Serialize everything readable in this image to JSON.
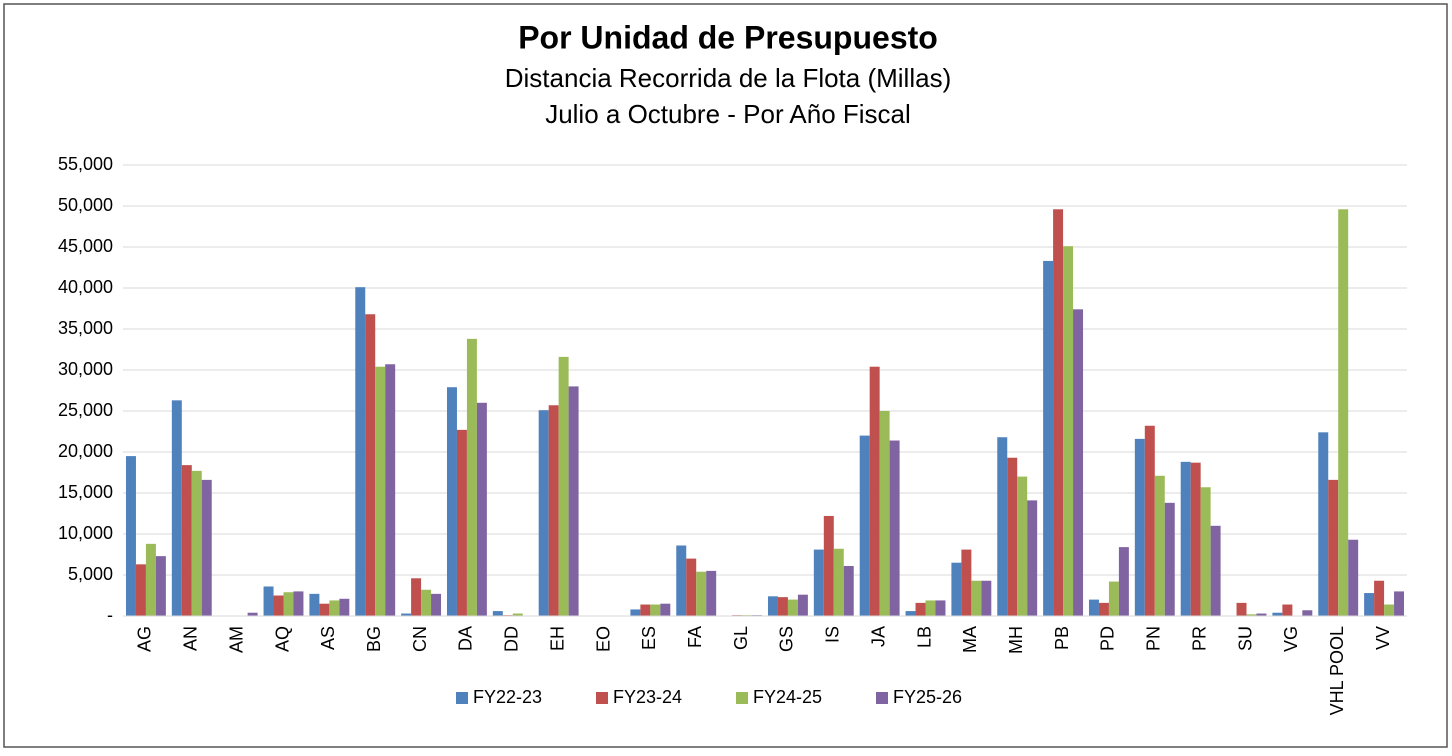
{
  "chart_data": {
    "type": "bar",
    "title": "Por Unidad de Presupuesto",
    "subtitle": [
      "Distancia Recorrida de la Flota (Millas)",
      "Julio a Octubre - Por Año Fiscal"
    ],
    "categories": [
      "AG",
      "AN",
      "AM",
      "AQ",
      "AS",
      "BG",
      "CN",
      "DA",
      "DD",
      "EH",
      "EO",
      "ES",
      "FA",
      "GL",
      "GS",
      "IS",
      "JA",
      "LB",
      "MA",
      "MH",
      "PB",
      "PD",
      "PN",
      "PR",
      "SU",
      "VG",
      "VHL POOL",
      "VV"
    ],
    "series": [
      {
        "name": "FY22-23",
        "color": "#4f81bd",
        "values": [
          19500,
          26300,
          0,
          3600,
          2700,
          40100,
          300,
          27900,
          600,
          25100,
          0,
          800,
          8600,
          0,
          2400,
          8100,
          22000,
          600,
          6500,
          21800,
          43300,
          2000,
          21600,
          18800,
          0,
          400,
          22400,
          2800
        ]
      },
      {
        "name": "FY23-24",
        "color": "#c0504d",
        "values": [
          6300,
          18400,
          0,
          2500,
          1500,
          36800,
          4600,
          22700,
          100,
          25700,
          0,
          1400,
          7000,
          100,
          2300,
          12200,
          30400,
          1600,
          8100,
          19300,
          49600,
          1600,
          23200,
          18700,
          1600,
          1400,
          16600,
          4300
        ]
      },
      {
        "name": "FY24-25",
        "color": "#9bbb59",
        "values": [
          8800,
          17700,
          0,
          2900,
          1900,
          30400,
          3200,
          33800,
          300,
          31600,
          0,
          1400,
          5400,
          100,
          2000,
          8200,
          25000,
          1900,
          4300,
          17000,
          45100,
          4200,
          17100,
          15700,
          200,
          0,
          49600,
          1400
        ]
      },
      {
        "name": "FY25-26",
        "color": "#8064a2",
        "values": [
          7300,
          16600,
          400,
          3000,
          2100,
          30700,
          2700,
          26000,
          0,
          28000,
          0,
          1500,
          5500,
          100,
          2600,
          6100,
          21400,
          1900,
          4300,
          14100,
          37400,
          8400,
          13800,
          11000,
          300,
          700,
          9300,
          3000
        ]
      }
    ],
    "ylim": [
      0,
      55000
    ],
    "yticks": [
      {
        "value": 0,
        "label": "-"
      },
      {
        "value": 5000,
        "label": "5,000"
      },
      {
        "value": 10000,
        "label": "10,000"
      },
      {
        "value": 15000,
        "label": "15,000"
      },
      {
        "value": 20000,
        "label": "20,000"
      },
      {
        "value": 25000,
        "label": "25,000"
      },
      {
        "value": 30000,
        "label": "30,000"
      },
      {
        "value": 35000,
        "label": "35,000"
      },
      {
        "value": 40000,
        "label": "40,000"
      },
      {
        "value": 45000,
        "label": "45,000"
      },
      {
        "value": 50000,
        "label": "50,000"
      },
      {
        "value": 55000,
        "label": "55,000"
      }
    ],
    "grid": true,
    "legend": "bottom"
  }
}
